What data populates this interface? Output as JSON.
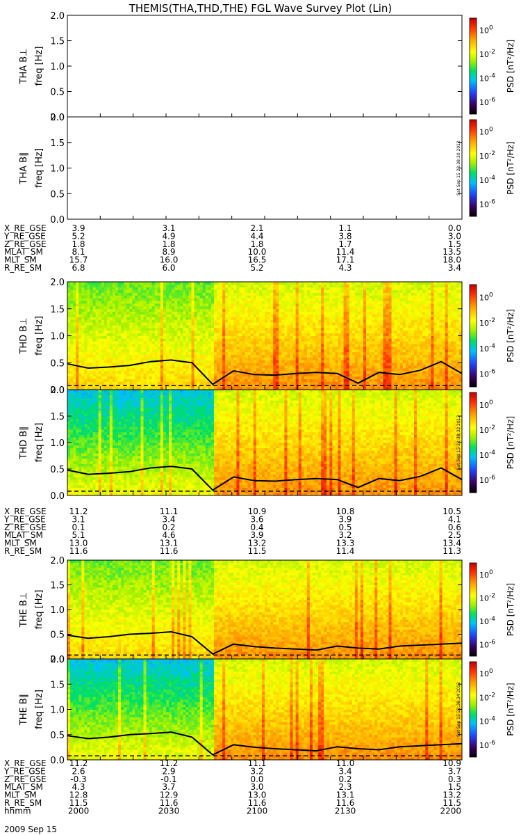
{
  "title": "THEMIS(THA,THD,THE) FGL Wave Survey Plot (Lin)",
  "colorbar": {
    "label": "PSD [nT²/Hz]",
    "ticks": [
      "10^0",
      "10^-2",
      "10^-4",
      "10^-6"
    ],
    "stamps": {
      "tha": "Sat Sep 15 22:38:30 2012",
      "thd": "Sat Sep 15 22:38:32 2012",
      "the": "Sat Sep 15 22:38:34 2012"
    }
  },
  "freq_axis": {
    "label": "freq [Hz]",
    "ticks": [
      "0.0",
      "0.5",
      "1.0",
      "1.5",
      "2.0"
    ],
    "ylim": [
      0.0,
      2.0
    ]
  },
  "panels": [
    {
      "probe": "THA",
      "component": "B⊥",
      "label": "THA B⊥",
      "has_data": false
    },
    {
      "probe": "THA",
      "component": "B∥",
      "label": "THA B∥",
      "has_data": false
    },
    {
      "probe": "THD",
      "component": "B⊥",
      "label": "THD B⊥",
      "has_data": true
    },
    {
      "probe": "THD",
      "component": "B∥",
      "label": "THD B∥",
      "has_data": true
    },
    {
      "probe": "THE",
      "component": "B⊥",
      "label": "THE B⊥",
      "has_data": true
    },
    {
      "probe": "THE",
      "component": "B∥",
      "label": "THE B∥",
      "has_data": true
    }
  ],
  "ephemeris": [
    {
      "probe": "THA",
      "rows": [
        {
          "name": "X_RE_GSE",
          "values": [
            "3.9",
            "3.1",
            "2.1",
            "1.1",
            "0.0"
          ]
        },
        {
          "name": "Y_RE_GSE",
          "values": [
            "5.2",
            "4.9",
            "4.4",
            "3.8",
            "3.0"
          ]
        },
        {
          "name": "Z_RE_GSE",
          "values": [
            "1.8",
            "1.8",
            "1.8",
            "1.7",
            "1.5"
          ]
        },
        {
          "name": "MLAT_SM",
          "values": [
            "8.1",
            "8.9",
            "10.0",
            "11.4",
            "13.5"
          ]
        },
        {
          "name": "MLT_SM",
          "values": [
            "15.7",
            "16.0",
            "16.5",
            "17.1",
            "18.0"
          ]
        },
        {
          "name": "R_RE_SM",
          "values": [
            "6.8",
            "6.0",
            "5.2",
            "4.3",
            "3.4"
          ]
        }
      ]
    },
    {
      "probe": "THD",
      "rows": [
        {
          "name": "X_RE_GSE",
          "values": [
            "11.2",
            "11.1",
            "10.9",
            "10.8",
            "10.5"
          ]
        },
        {
          "name": "Y_RE_GSE",
          "values": [
            "3.1",
            "3.4",
            "3.6",
            "3.9",
            "4.1"
          ]
        },
        {
          "name": "Z_RE_GSE",
          "values": [
            "0.1",
            "0.2",
            "0.4",
            "0.5",
            "0.6"
          ]
        },
        {
          "name": "MLAT_SM",
          "values": [
            "5.1",
            "4.6",
            "3.9",
            "3.2",
            "2.5"
          ]
        },
        {
          "name": "MLT_SM",
          "values": [
            "13.0",
            "13.1",
            "13.2",
            "13.3",
            "13.4"
          ]
        },
        {
          "name": "R_RE_SM",
          "values": [
            "11.6",
            "11.6",
            "11.5",
            "11.4",
            "11.3"
          ]
        }
      ]
    },
    {
      "probe": "THE",
      "rows": [
        {
          "name": "X_RE_GSE",
          "values": [
            "11.2",
            "11.2",
            "11.1",
            "11.0",
            "10.9"
          ]
        },
        {
          "name": "Y_RE_GSE",
          "values": [
            "2.6",
            "2.9",
            "3.2",
            "3.4",
            "3.7"
          ]
        },
        {
          "name": "Z_RE_GSE",
          "values": [
            "-0.3",
            "-0.1",
            "0.0",
            "0.2",
            "0.3"
          ]
        },
        {
          "name": "MLAT_SM",
          "values": [
            "4.3",
            "3.7",
            "3.0",
            "2.3",
            "1.5"
          ]
        },
        {
          "name": "MLT_SM",
          "values": [
            "12.8",
            "12.9",
            "13.0",
            "13.1",
            "13.2"
          ]
        },
        {
          "name": "R_RE_SM",
          "values": [
            "11.5",
            "11.6",
            "11.6",
            "11.6",
            "11.5"
          ]
        },
        {
          "name": "hhmm",
          "values": [
            "2000",
            "2030",
            "2100",
            "2130",
            "2200"
          ]
        }
      ]
    }
  ],
  "date_label": "2009 Sep 15",
  "chart_data": {
    "type": "heatmap",
    "title": "THEMIS(THA,THD,THE) FGL Wave Survey Plot (Lin)",
    "ylabel": "freq [Hz]",
    "ylim": [
      0.0,
      2.0
    ],
    "x": [
      "2000",
      "2030",
      "2100",
      "2130",
      "2200"
    ],
    "color_scale": "log",
    "colorbar_label": "PSD [nT²/Hz]",
    "colorbar_ticks": [
      "10^0",
      "10^-2",
      "10^-4",
      "10^-6"
    ],
    "series": [
      {
        "panel": "THD B⊥",
        "line_freq_hz": [
          0.48,
          0.4,
          0.42,
          0.45,
          0.52,
          0.55,
          0.5,
          0.1,
          0.35,
          0.28,
          0.27,
          0.3,
          0.32,
          0.3,
          0.12,
          0.32,
          0.28,
          0.36,
          0.52,
          0.3
        ]
      },
      {
        "panel": "THD B∥",
        "line_freq_hz": [
          0.48,
          0.4,
          0.42,
          0.45,
          0.52,
          0.55,
          0.5,
          0.1,
          0.35,
          0.28,
          0.27,
          0.3,
          0.32,
          0.3,
          0.15,
          0.32,
          0.28,
          0.36,
          0.52,
          0.3
        ]
      },
      {
        "panel": "THE B⊥",
        "line_freq_hz": [
          0.48,
          0.42,
          0.45,
          0.5,
          0.52,
          0.55,
          0.45,
          0.1,
          0.3,
          0.25,
          0.22,
          0.2,
          0.18,
          0.26,
          0.22,
          0.2,
          0.26,
          0.28,
          0.3,
          0.32
        ]
      },
      {
        "panel": "THE B∥",
        "line_freq_hz": [
          0.48,
          0.42,
          0.45,
          0.5,
          0.52,
          0.55,
          0.45,
          0.1,
          0.3,
          0.25,
          0.22,
          0.2,
          0.18,
          0.26,
          0.22,
          0.2,
          0.26,
          0.28,
          0.3,
          0.32
        ]
      }
    ]
  }
}
